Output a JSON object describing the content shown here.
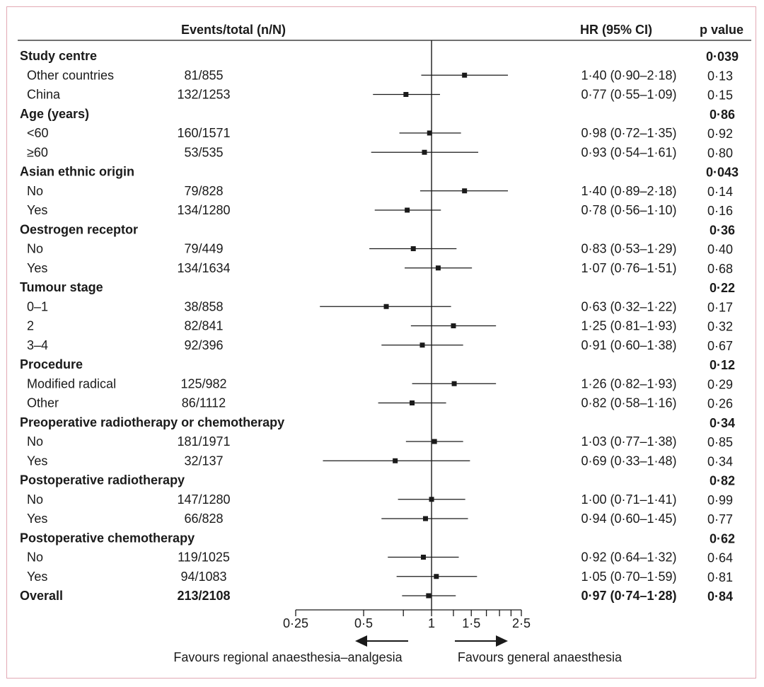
{
  "chart_data": {
    "type": "forest",
    "headers": {
      "events": "Events/total (n/N)",
      "hr": "HR (95% CI)",
      "p": "p value"
    },
    "x_scale": "log",
    "xlim": [
      0.25,
      2.5
    ],
    "reference_line": 1,
    "ticks": [
      {
        "value": 0.25,
        "label": "0·25"
      },
      {
        "value": 0.5,
        "label": "0·5"
      },
      {
        "value": 1,
        "label": "1"
      },
      {
        "value": 1.5,
        "label": "1·5"
      },
      {
        "value": 2.5,
        "label": "2·5"
      }
    ],
    "minor_ticks": [
      0.75,
      1.25,
      1.75,
      2,
      2.25
    ],
    "favours_left": "Favours regional anaesthesia–analgesia",
    "favours_right": "Favours general anaesthesia",
    "rows": [
      {
        "kind": "group",
        "label": "Study centre",
        "p": "0·039"
      },
      {
        "kind": "sub",
        "label": "Other countries",
        "events": "81/855",
        "hr": 1.4,
        "lo": 0.9,
        "hi": 2.18,
        "hr_text": "1·40 (0·90–2·18)",
        "p": "0·13"
      },
      {
        "kind": "sub",
        "label": "China",
        "events": "132/1253",
        "hr": 0.77,
        "lo": 0.55,
        "hi": 1.09,
        "hr_text": "0·77 (0·55–1·09)",
        "p": "0·15"
      },
      {
        "kind": "group",
        "label": "Age (years)",
        "p": "0·86"
      },
      {
        "kind": "sub",
        "label": "<60",
        "events": "160/1571",
        "hr": 0.98,
        "lo": 0.72,
        "hi": 1.35,
        "hr_text": "0·98 (0·72–1·35)",
        "p": "0·92"
      },
      {
        "kind": "sub",
        "label": "≥60",
        "events": "53/535",
        "hr": 0.93,
        "lo": 0.54,
        "hi": 1.61,
        "hr_text": "0·93 (0·54–1·61)",
        "p": "0·80"
      },
      {
        "kind": "group",
        "label": "Asian ethnic origin",
        "p": "0·043"
      },
      {
        "kind": "sub",
        "label": "No",
        "events": "79/828",
        "hr": 1.4,
        "lo": 0.89,
        "hi": 2.18,
        "hr_text": "1·40 (0·89–2·18)",
        "p": "0·14"
      },
      {
        "kind": "sub",
        "label": "Yes",
        "events": "134/1280",
        "hr": 0.78,
        "lo": 0.56,
        "hi": 1.1,
        "hr_text": "0·78 (0·56–1·10)",
        "p": "0·16"
      },
      {
        "kind": "group",
        "label": "Oestrogen receptor",
        "p": "0·36"
      },
      {
        "kind": "sub",
        "label": "No",
        "events": "79/449",
        "hr": 0.83,
        "lo": 0.53,
        "hi": 1.29,
        "hr_text": "0·83 (0·53–1·29)",
        "p": "0·40"
      },
      {
        "kind": "sub",
        "label": "Yes",
        "events": "134/1634",
        "hr": 1.07,
        "lo": 0.76,
        "hi": 1.51,
        "hr_text": "1·07 (0·76–1·51)",
        "p": "0·68"
      },
      {
        "kind": "group",
        "label": "Tumour stage",
        "p": "0·22"
      },
      {
        "kind": "sub",
        "label": "0–1",
        "events": "38/858",
        "hr": 0.63,
        "lo": 0.32,
        "hi": 1.22,
        "hr_text": "0·63 (0·32–1·22)",
        "p": "0·17"
      },
      {
        "kind": "sub",
        "label": "2",
        "events": "82/841",
        "hr": 1.25,
        "lo": 0.81,
        "hi": 1.93,
        "hr_text": "1·25 (0·81–1·93)",
        "p": "0·32"
      },
      {
        "kind": "sub",
        "label": "3–4",
        "events": "92/396",
        "hr": 0.91,
        "lo": 0.6,
        "hi": 1.38,
        "hr_text": "0·91 (0·60–1·38)",
        "p": "0·67"
      },
      {
        "kind": "group",
        "label": "Procedure",
        "p": "0·12"
      },
      {
        "kind": "sub",
        "label": "Modified radical",
        "events": "125/982",
        "hr": 1.26,
        "lo": 0.82,
        "hi": 1.93,
        "hr_text": "1·26 (0·82–1·93)",
        "p": "0·29"
      },
      {
        "kind": "sub",
        "label": "Other",
        "events": "86/1112",
        "hr": 0.82,
        "lo": 0.58,
        "hi": 1.16,
        "hr_text": "0·82 (0·58–1·16)",
        "p": "0·26"
      },
      {
        "kind": "group",
        "label": "Preoperative radiotherapy or chemotherapy",
        "p": "0·34"
      },
      {
        "kind": "sub",
        "label": "No",
        "events": "181/1971",
        "hr": 1.03,
        "lo": 0.77,
        "hi": 1.38,
        "hr_text": "1·03 (0·77–1·38)",
        "p": "0·85"
      },
      {
        "kind": "sub",
        "label": "Yes",
        "events": "32/137",
        "hr": 0.69,
        "lo": 0.33,
        "hi": 1.48,
        "hr_text": "0·69 (0·33–1·48)",
        "p": "0·34"
      },
      {
        "kind": "group",
        "label": "Postoperative radiotherapy",
        "p": "0·82"
      },
      {
        "kind": "sub",
        "label": "No",
        "events": "147/1280",
        "hr": 1.0,
        "lo": 0.71,
        "hi": 1.41,
        "hr_text": "1·00 (0·71–1·41)",
        "p": "0·99"
      },
      {
        "kind": "sub",
        "label": "Yes",
        "events": "66/828",
        "hr": 0.94,
        "lo": 0.6,
        "hi": 1.45,
        "hr_text": "0·94 (0·60–1·45)",
        "p": "0·77"
      },
      {
        "kind": "group",
        "label": "Postoperative chemotherapy",
        "p": "0·62"
      },
      {
        "kind": "sub",
        "label": "No",
        "events": "119/1025",
        "hr": 0.92,
        "lo": 0.64,
        "hi": 1.32,
        "hr_text": "0·92 (0·64–1·32)",
        "p": "0·64"
      },
      {
        "kind": "sub",
        "label": "Yes",
        "events": "94/1083",
        "hr": 1.05,
        "lo": 0.7,
        "hi": 1.59,
        "hr_text": "1·05 (0·70–1·59)",
        "p": "0·81"
      },
      {
        "kind": "overall",
        "label": "Overall",
        "events": "213/2108",
        "hr": 0.97,
        "lo": 0.74,
        "hi": 1.28,
        "hr_text": "0·97 (0·74–1·28)",
        "p": "0·84"
      }
    ]
  }
}
